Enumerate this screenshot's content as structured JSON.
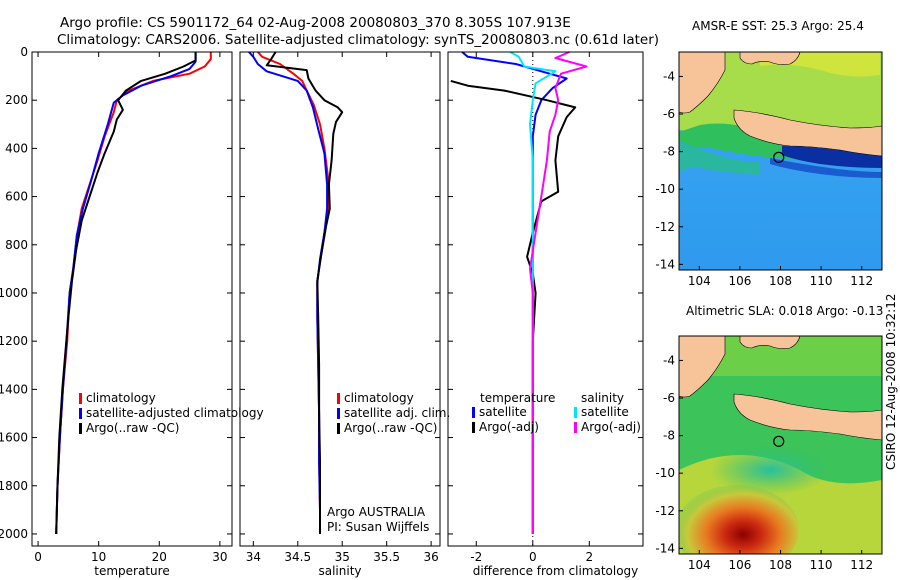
{
  "header": {
    "line1": "Argo profile: CS 5901172_64 02-Aug-2008 20080803_370 8.305S 107.913E",
    "line2": "Climatology: CARS2006. Satellite-adjusted climatology: synTS_20080803.nc (0.61d later)"
  },
  "side_label": "CSIRO 12-Aug-2008 10:32:12",
  "credit": {
    "line1": "Argo AUSTRALIA",
    "line2": "PI: Susan Wijffels"
  },
  "colors": {
    "climatology": "#ff0000",
    "satellite": "#0000ff",
    "argo": "#000000",
    "satellite_diff_salinity": "#00e5ff",
    "argo_diff_salinity": "#ff00ff",
    "land": "#f7c49a"
  },
  "chart_data": [
    {
      "type": "line",
      "id": "temperature",
      "xlabel": "temperature",
      "xlim": [
        -1,
        32
      ],
      "ylim": [
        2050,
        0
      ],
      "xticks": [
        0,
        10,
        20,
        30
      ],
      "yticks": [
        0,
        200,
        400,
        600,
        800,
        1000,
        1200,
        1400,
        1600,
        1800,
        2000
      ],
      "legend": [
        "climatology",
        "satellite-adjusted climatology",
        "Argo(..raw -QC)"
      ],
      "series": [
        {
          "name": "climatology",
          "color": "#ff0000",
          "points": [
            [
              28.5,
              0
            ],
            [
              28.5,
              30
            ],
            [
              27.5,
              60
            ],
            [
              25,
              90
            ],
            [
              19,
              120
            ],
            [
              15,
              160
            ],
            [
              13,
              200
            ],
            [
              12.5,
              250
            ],
            [
              11,
              350
            ],
            [
              9.8,
              450
            ],
            [
              8.5,
              550
            ],
            [
              7.2,
              650
            ],
            [
              6.5,
              750
            ],
            [
              5.8,
              900
            ],
            [
              5.2,
              1000
            ],
            [
              4.8,
              1200
            ],
            [
              4.1,
              1400
            ],
            [
              3.6,
              1600
            ],
            [
              3.2,
              1800
            ],
            [
              3,
              2000
            ]
          ]
        },
        {
          "name": "satellite-adjusted climatology",
          "color": "#0000ff",
          "points": [
            [
              26,
              0
            ],
            [
              26,
              40
            ],
            [
              25,
              70
            ],
            [
              22,
              100
            ],
            [
              17,
              140
            ],
            [
              14,
              180
            ],
            [
              12.5,
              210
            ],
            [
              11.5,
              300
            ],
            [
              10,
              420
            ],
            [
              8.8,
              530
            ],
            [
              7.4,
              650
            ],
            [
              6.4,
              760
            ],
            [
              5.8,
              900
            ],
            [
              5.2,
              1000
            ],
            [
              4.7,
              1200
            ],
            [
              4.1,
              1400
            ],
            [
              3.6,
              1600
            ],
            [
              3.2,
              1800
            ],
            [
              3,
              2000
            ]
          ]
        },
        {
          "name": "Argo(..raw -QC)",
          "color": "#000000",
          "points": [
            [
              26,
              0
            ],
            [
              26,
              35
            ],
            [
              24,
              60
            ],
            [
              21,
              90
            ],
            [
              17,
              120
            ],
            [
              14.5,
              160
            ],
            [
              13.2,
              200
            ],
            [
              14,
              240
            ],
            [
              13,
              280
            ],
            [
              12.5,
              330
            ],
            [
              11,
              420
            ],
            [
              9.8,
              500
            ],
            [
              8.5,
              600
            ],
            [
              7.2,
              700
            ],
            [
              6.3,
              820
            ],
            [
              5.6,
              950
            ],
            [
              5,
              1100
            ],
            [
              4.5,
              1250
            ],
            [
              4,
              1400
            ],
            [
              3.5,
              1600
            ],
            [
              3.2,
              1800
            ],
            [
              3,
              2000
            ]
          ]
        }
      ]
    },
    {
      "type": "line",
      "id": "salinity",
      "xlabel": "salinity",
      "xlim": [
        33.85,
        36.1
      ],
      "ylim": [
        2050,
        0
      ],
      "xticks": [
        34,
        34.5,
        35,
        35.5,
        36
      ],
      "legend": [
        "climatology",
        "satellite adj. clim.",
        "Argo(..raw -QC)"
      ],
      "series": [
        {
          "name": "climatology",
          "color": "#ff0000",
          "points": [
            [
              34.05,
              0
            ],
            [
              34.1,
              20
            ],
            [
              34.3,
              50
            ],
            [
              34.45,
              90
            ],
            [
              34.55,
              120
            ],
            [
              34.6,
              160
            ],
            [
              34.68,
              220
            ],
            [
              34.75,
              300
            ],
            [
              34.8,
              400
            ],
            [
              34.85,
              550
            ],
            [
              34.85,
              650
            ],
            [
              34.8,
              750
            ],
            [
              34.76,
              850
            ],
            [
              34.72,
              950
            ],
            [
              34.72,
              1100
            ],
            [
              34.73,
              1300
            ],
            [
              34.74,
              1500
            ],
            [
              34.74,
              1700
            ],
            [
              34.75,
              1900
            ],
            [
              34.75,
              2000
            ]
          ]
        },
        {
          "name": "satellite adj. clim.",
          "color": "#0000ff",
          "points": [
            [
              33.95,
              0
            ],
            [
              34,
              20
            ],
            [
              34.05,
              50
            ],
            [
              34.15,
              80
            ],
            [
              34.5,
              120
            ],
            [
              34.6,
              160
            ],
            [
              34.67,
              230
            ],
            [
              34.73,
              320
            ],
            [
              34.8,
              420
            ],
            [
              34.83,
              550
            ],
            [
              34.83,
              650
            ],
            [
              34.8,
              750
            ],
            [
              34.75,
              860
            ],
            [
              34.72,
              960
            ],
            [
              34.72,
              1100
            ],
            [
              34.73,
              1300
            ],
            [
              34.74,
              1500
            ],
            [
              34.74,
              1700
            ],
            [
              34.75,
              1900
            ],
            [
              34.75,
              2000
            ]
          ]
        },
        {
          "name": "Argo(..raw -QC)",
          "color": "#000000",
          "points": [
            [
              34.25,
              0
            ],
            [
              34.2,
              30
            ],
            [
              34.15,
              55
            ],
            [
              34.6,
              75
            ],
            [
              34.62,
              110
            ],
            [
              34.7,
              160
            ],
            [
              34.8,
              200
            ],
            [
              34.95,
              230
            ],
            [
              35,
              250
            ],
            [
              34.93,
              290
            ],
            [
              34.9,
              340
            ],
            [
              34.88,
              450
            ],
            [
              34.85,
              550
            ],
            [
              34.86,
              650
            ],
            [
              34.82,
              720
            ],
            [
              34.76,
              850
            ],
            [
              34.72,
              950
            ],
            [
              34.73,
              1100
            ],
            [
              34.74,
              1300
            ],
            [
              34.74,
              1500
            ],
            [
              34.75,
              1700
            ],
            [
              34.75,
              1900
            ],
            [
              34.75,
              2000
            ]
          ]
        }
      ]
    },
    {
      "type": "line",
      "id": "difference",
      "xlabel": "difference from climatology",
      "xlim": [
        -3,
        3.9
      ],
      "ylim": [
        2050,
        0
      ],
      "xticks": [
        -2,
        0,
        2
      ],
      "legend_left": {
        "title": "temperature",
        "entries": [
          "satellite",
          "Argo(-adj)"
        ]
      },
      "legend_right": {
        "title": "salinity",
        "entries": [
          "satellite",
          "Argo(-adj)"
        ]
      },
      "series": [
        {
          "name": "temperature satellite",
          "color": "#0000ff",
          "points": [
            [
              -2.5,
              0
            ],
            [
              -2.3,
              20
            ],
            [
              -0.6,
              50
            ],
            [
              0.3,
              80
            ],
            [
              1.2,
              110
            ],
            [
              0.7,
              150
            ],
            [
              0.3,
              200
            ],
            [
              0.1,
              260
            ],
            [
              0,
              350
            ],
            [
              0,
              600
            ],
            [
              0,
              900
            ],
            [
              0,
              1200
            ],
            [
              0,
              1500
            ],
            [
              0,
              1800
            ],
            [
              0,
              2000
            ]
          ]
        },
        {
          "name": "temperature Argo(-adj)",
          "color": "#000000",
          "points": [
            [
              -2.9,
              120
            ],
            [
              -2.3,
              140
            ],
            [
              -1,
              160
            ],
            [
              0.5,
              200
            ],
            [
              1.5,
              230
            ],
            [
              1.2,
              270
            ],
            [
              0.9,
              350
            ],
            [
              0.8,
              450
            ],
            [
              0.9,
              580
            ],
            [
              0.3,
              620
            ],
            [
              0,
              750
            ],
            [
              -0.2,
              850
            ],
            [
              0,
              920
            ],
            [
              0.1,
              1000
            ],
            [
              0,
              1200
            ],
            [
              0,
              1500
            ],
            [
              0,
              1800
            ],
            [
              0,
              2000
            ]
          ]
        },
        {
          "name": "salinity satellite",
          "color": "#00e5ff",
          "points": [
            [
              -0.8,
              0
            ],
            [
              -0.5,
              20
            ],
            [
              -0.3,
              60
            ],
            [
              0.8,
              80
            ],
            [
              0.1,
              130
            ],
            [
              0,
              200
            ],
            [
              -0.1,
              300
            ],
            [
              0,
              450
            ],
            [
              0,
              650
            ],
            [
              0,
              900
            ],
            [
              0,
              1200
            ],
            [
              0,
              1500
            ],
            [
              0,
              1800
            ],
            [
              0,
              2000
            ]
          ]
        },
        {
          "name": "salinity Argo(-adj)",
          "color": "#ff00ff",
          "points": [
            [
              1.3,
              0
            ],
            [
              0.8,
              25
            ],
            [
              1.9,
              60
            ],
            [
              1,
              90
            ],
            [
              0.8,
              150
            ],
            [
              0.9,
              200
            ],
            [
              0.8,
              260
            ],
            [
              0.6,
              330
            ],
            [
              0.5,
              450
            ],
            [
              0.3,
              600
            ],
            [
              0.1,
              750
            ],
            [
              -0.1,
              900
            ],
            [
              0,
              1000
            ],
            [
              0,
              1200
            ],
            [
              0,
              1500
            ],
            [
              0,
              1800
            ],
            [
              0,
              2000
            ]
          ]
        }
      ]
    },
    {
      "type": "heatmap",
      "id": "sst_map",
      "title": "AMSR-E SST: 25.3 Argo: 25.4",
      "xlim": [
        103,
        113
      ],
      "ylim": [
        -14.3,
        -2.7
      ],
      "xticks": [
        104,
        106,
        108,
        110,
        112
      ],
      "yticks": [
        -4,
        -6,
        -8,
        -10,
        -12,
        -14
      ],
      "profile_location": [
        107.913,
        -8.305
      ]
    },
    {
      "type": "heatmap",
      "id": "sla_map",
      "title": "Altimetric SLA: 0.018 Argo: -0.13",
      "xlim": [
        103,
        113
      ],
      "ylim": [
        -14.3,
        -2.7
      ],
      "xticks": [
        104,
        106,
        108,
        110,
        112
      ],
      "yticks": [
        -4,
        -6,
        -8,
        -10,
        -12,
        -14
      ],
      "profile_location": [
        107.913,
        -8.305
      ]
    }
  ]
}
